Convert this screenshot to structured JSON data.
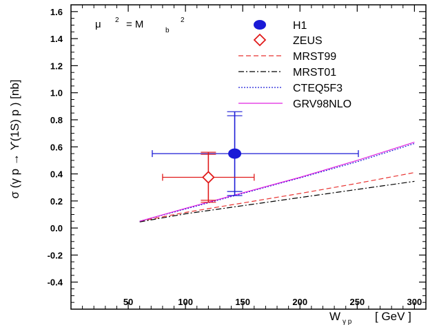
{
  "chart_data": {
    "type": "line",
    "xlabel": "W",
    "xlabel_sub": "γ p",
    "xlabel_unit": "[ GeV ]",
    "ylabel": "σ (γ p → ϒ(1S) p ) [nb]",
    "xlim": [
      0,
      310
    ],
    "ylim": [
      -0.6,
      1.65
    ],
    "xticks": [
      50,
      100,
      150,
      200,
      250,
      300
    ],
    "yticks": [
      -0.4,
      -0.2,
      0.0,
      0.2,
      0.4,
      0.6,
      0.8,
      1.0,
      1.2,
      1.4,
      1.6
    ],
    "ytick_labels": [
      "-0.4",
      "-0.2",
      "0.0",
      "0.2",
      "0.4",
      "0.6",
      "0.8",
      "1.0",
      "1.2",
      "1.4",
      "1.6"
    ],
    "annotation": {
      "base": "μ",
      "exp1": "2",
      "eq": "= M",
      "sub": "b",
      "exp2": "2"
    },
    "series": [
      {
        "name": "MRST99",
        "color": "#e8312f",
        "dash": "dashed",
        "x": [
          60,
          100,
          150,
          200,
          250,
          300
        ],
        "y": [
          0.05,
          0.115,
          0.185,
          0.255,
          0.33,
          0.41
        ]
      },
      {
        "name": "MRST01",
        "color": "#000000",
        "dash": "dashdot",
        "x": [
          60,
          100,
          150,
          200,
          250,
          300
        ],
        "y": [
          0.045,
          0.105,
          0.165,
          0.225,
          0.285,
          0.345
        ]
      },
      {
        "name": "CTEQ5F3",
        "color": "#1a1ad6",
        "dash": "dotted",
        "x": [
          60,
          100,
          150,
          200,
          250,
          300
        ],
        "y": [
          0.05,
          0.14,
          0.255,
          0.37,
          0.49,
          0.625
        ]
      },
      {
        "name": "GRV98NLO",
        "color": "#e020e0",
        "dash": "solid",
        "x": [
          60,
          100,
          150,
          200,
          250,
          300
        ],
        "y": [
          0.05,
          0.145,
          0.26,
          0.375,
          0.5,
          0.635
        ]
      }
    ],
    "points": [
      {
        "name": "H1",
        "color": "#1a1ad6",
        "marker": "filled-circle",
        "x": 143,
        "y": 0.55,
        "xerr": [
          71,
          251
        ],
        "yerr_inner": [
          0.27,
          0.83
        ],
        "yerr_outer": [
          0.24,
          0.86
        ]
      },
      {
        "name": "ZEUS",
        "color": "#e01a1a",
        "marker": "open-diamond",
        "x": 120,
        "y": 0.375,
        "xerr": [
          80,
          160
        ],
        "yerr_inner": [
          0.205,
          0.545
        ],
        "yerr_outer": [
          0.19,
          0.56
        ]
      }
    ],
    "legend_order": [
      "H1",
      "ZEUS",
      "MRST99",
      "MRST01",
      "CTEQ5F3",
      "GRV98NLO"
    ],
    "legend_placement": "top-right",
    "grid": false
  }
}
